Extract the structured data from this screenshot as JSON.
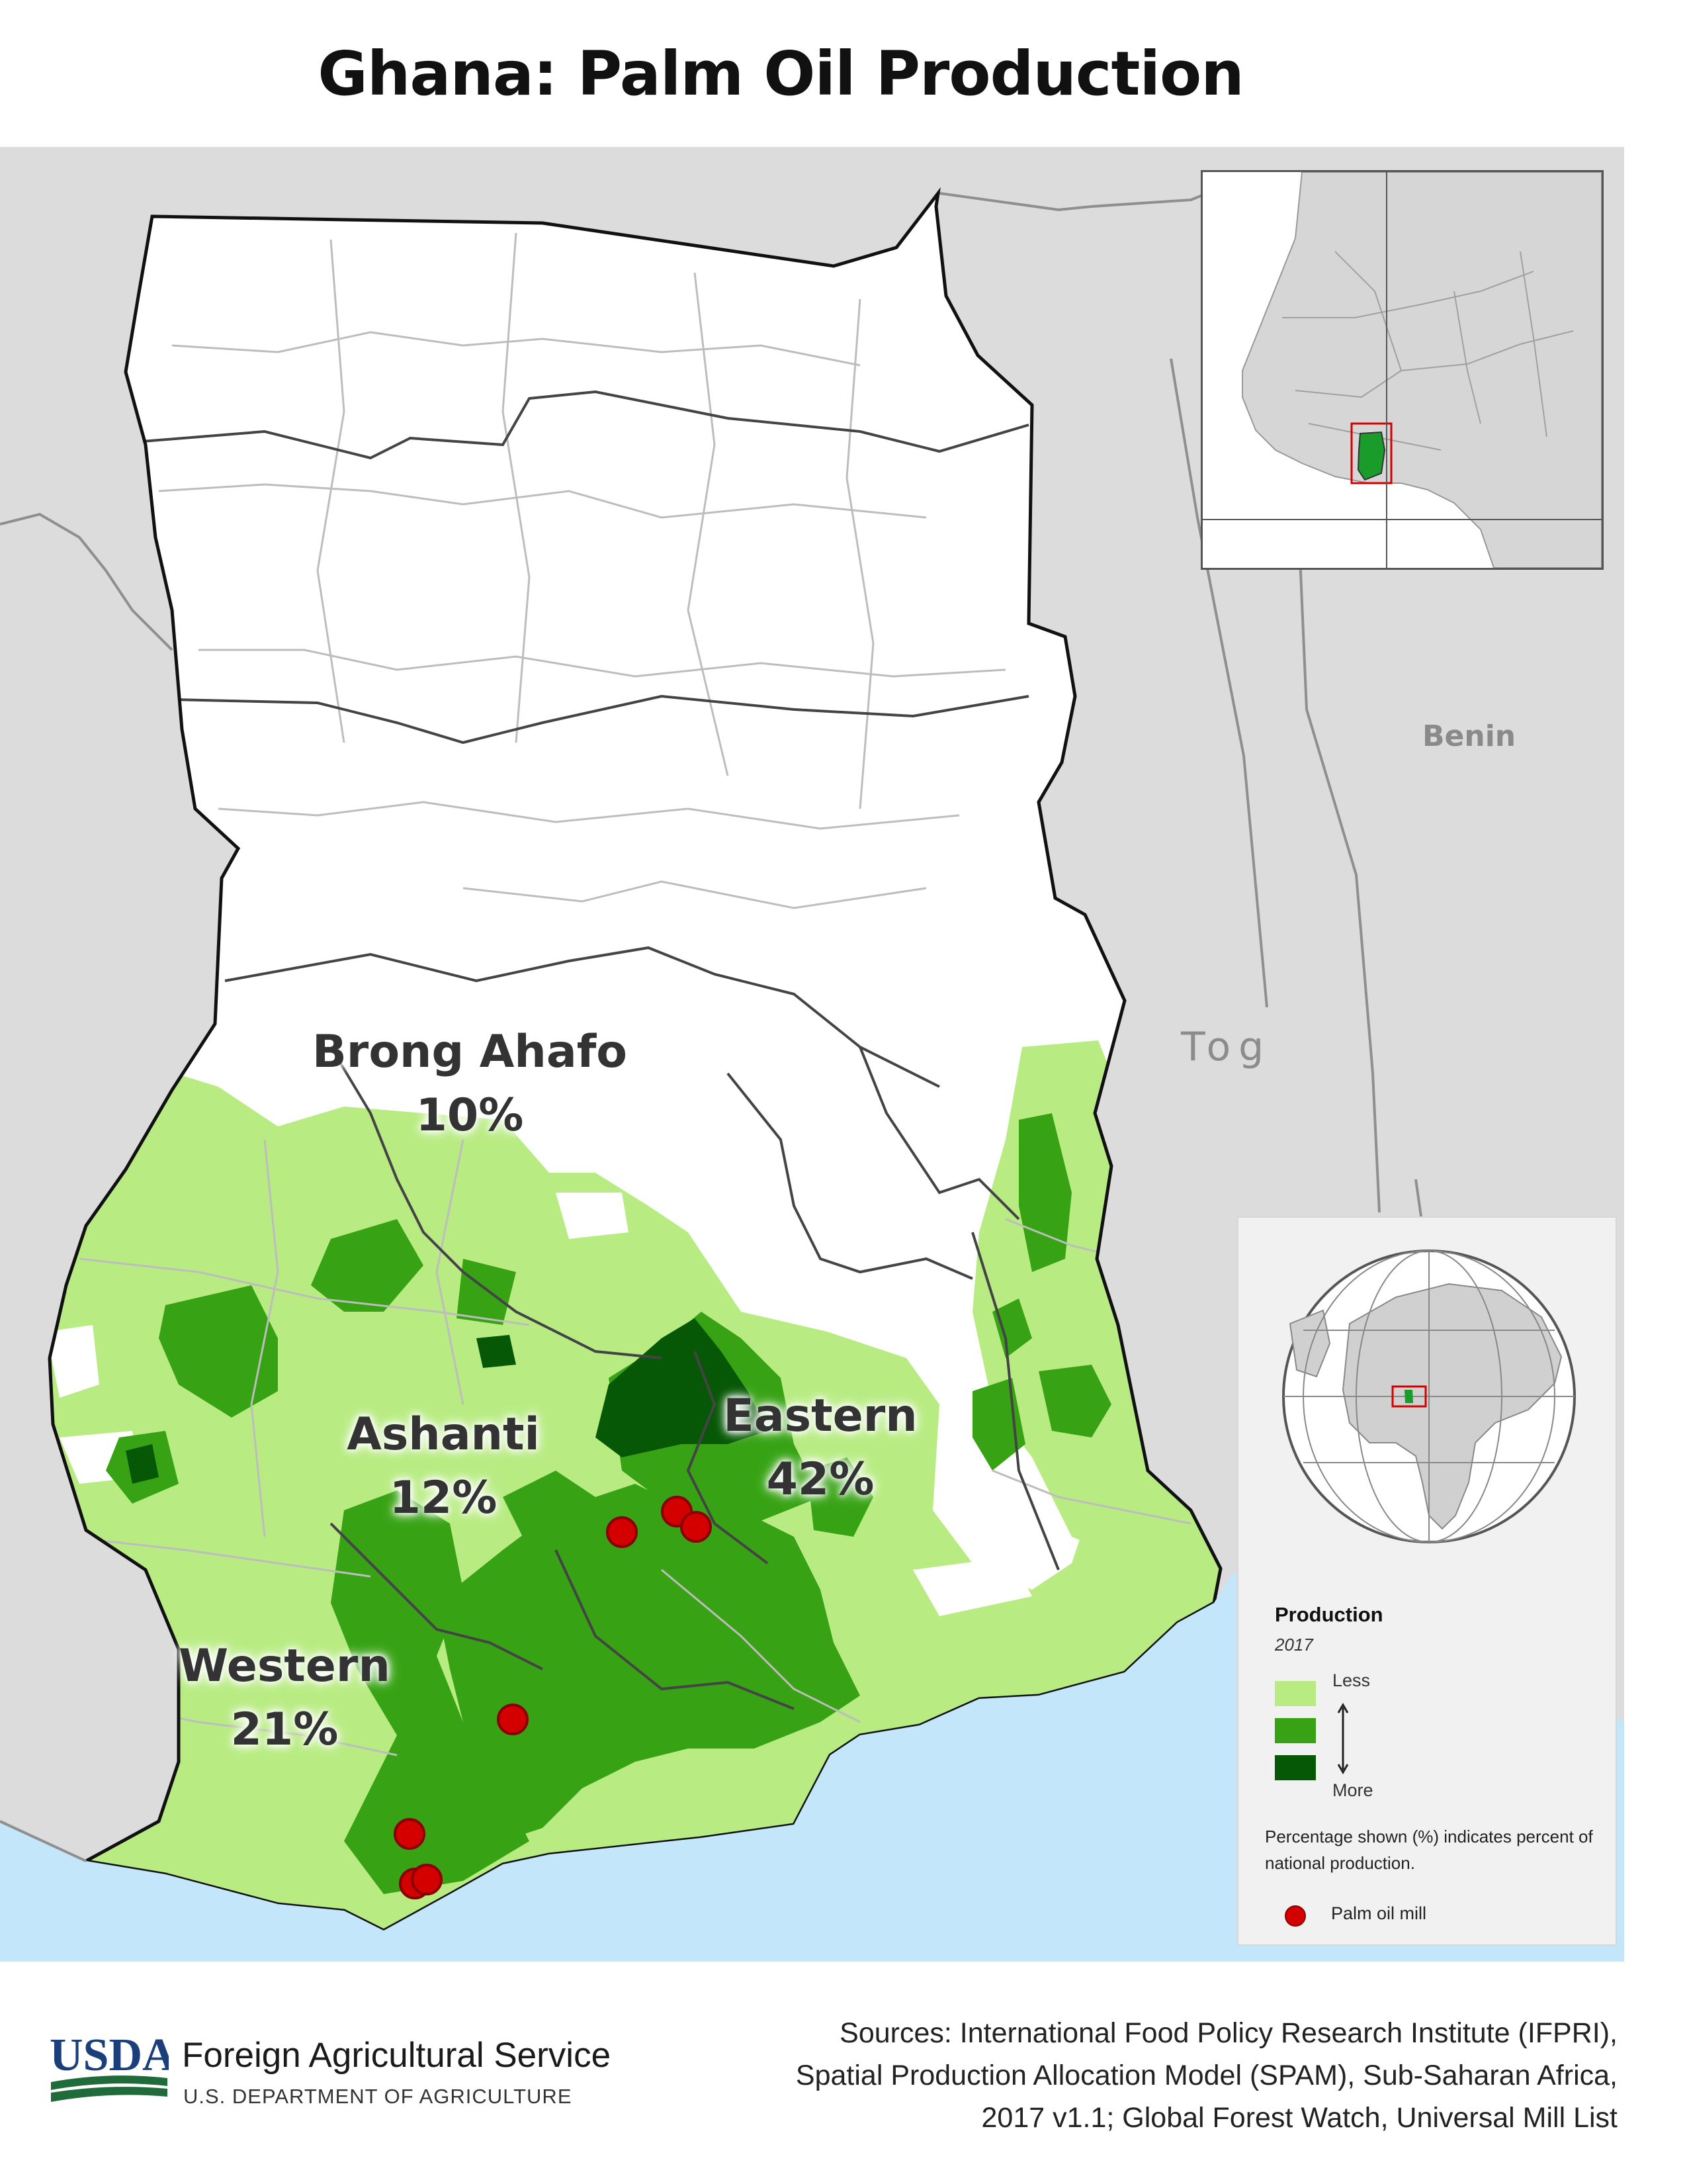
{
  "title": "Ghana: Palm Oil Production",
  "map": {
    "neighbor_labels": [
      "Benin",
      "Tog"
    ],
    "regions": [
      {
        "name": "Brong Ahafo",
        "share_percent": 10,
        "label": "10%"
      },
      {
        "name": "Ashanti",
        "share_percent": 12,
        "label": "12%"
      },
      {
        "name": "Eastern",
        "share_percent": 42,
        "label": "42%"
      },
      {
        "name": "Western",
        "share_percent": 21,
        "label": "21%"
      }
    ],
    "mill_marker_color": "#d40000",
    "production_colors": {
      "less": "#b8ec82",
      "medium": "#37a314",
      "more": "#065706"
    },
    "water_color": "#c3e6fb",
    "ghana_inset_color": "#1a9c2a"
  },
  "legend": {
    "title": "Production",
    "year": "2017",
    "less_label": "Less",
    "more_label": "More",
    "note": "Percentage shown (%) indicates percent of national production.",
    "mill_label": "Palm oil mill"
  },
  "footer": {
    "logo_text": "USDA",
    "agency": "Foreign Agricultural Service",
    "department": "U.S. DEPARTMENT OF AGRICULTURE",
    "sources_lines": [
      "Sources: International Food Policy Research Institute (IFPRI),",
      "Spatial Production Allocation Model (SPAM), Sub-Saharan Africa,",
      "2017 v1.1; Global Forest Watch, Universal Mill List"
    ]
  }
}
